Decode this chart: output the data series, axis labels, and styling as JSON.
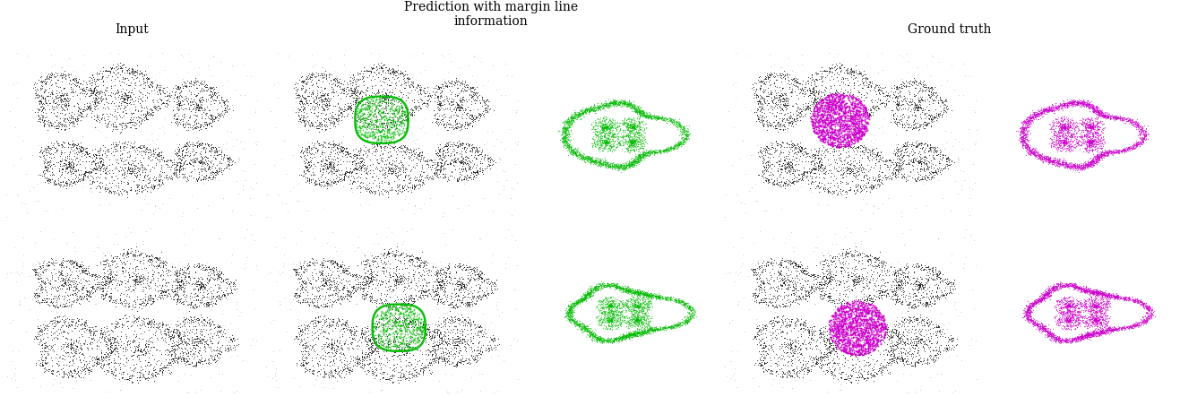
{
  "title_input": "Input",
  "title_prediction": "Prediction with margin line\ninformation",
  "title_ground_truth": "Ground truth",
  "bg_color": "#ffffff",
  "font_size_title": 10,
  "dark": "#111111",
  "green": "#00bb00",
  "magenta": "#cc00cc",
  "col_widths": [
    1.6,
    1.6,
    1.2,
    1.6,
    1.2
  ]
}
